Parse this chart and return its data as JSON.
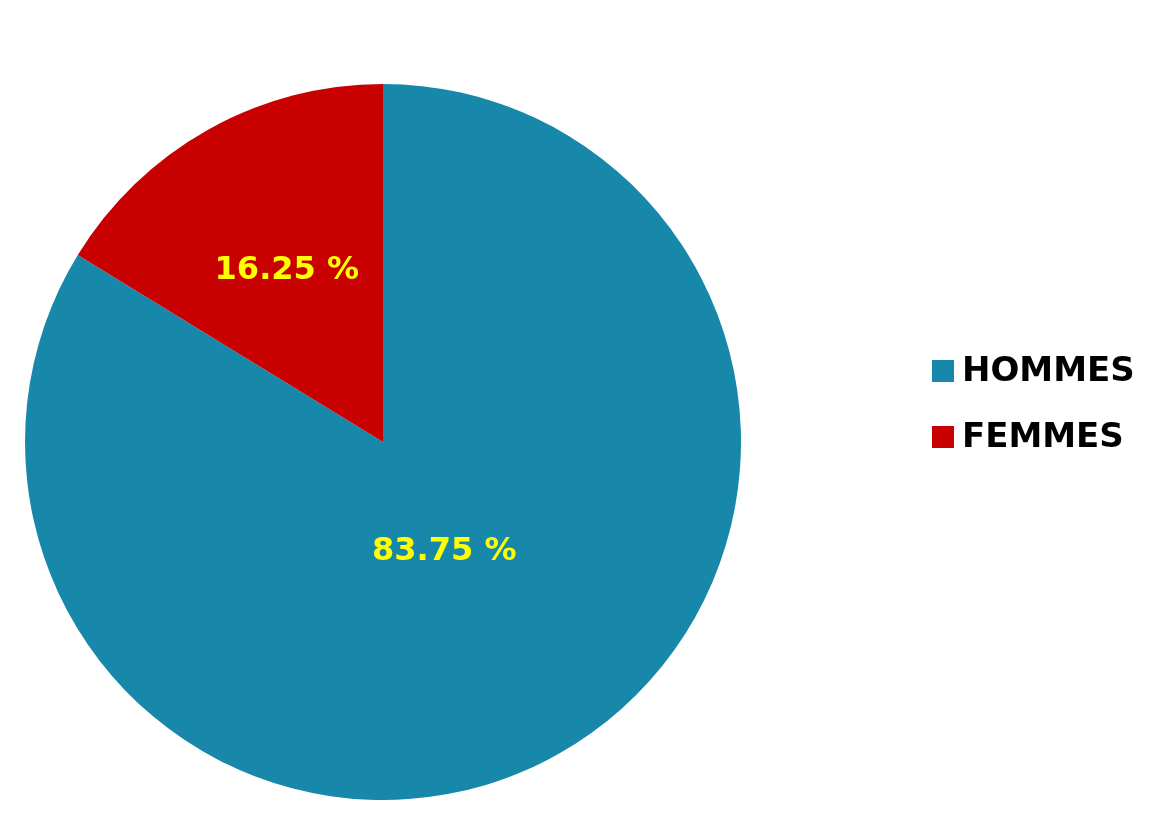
{
  "chart_data": {
    "type": "pie",
    "categories": [
      "HOMMES",
      "FEMMES"
    ],
    "values": [
      83.75,
      16.25
    ],
    "colors": [
      "#1788aa",
      "#c80000"
    ],
    "value_labels": [
      "83.75 %",
      "16.25 %"
    ],
    "legend": "right"
  }
}
